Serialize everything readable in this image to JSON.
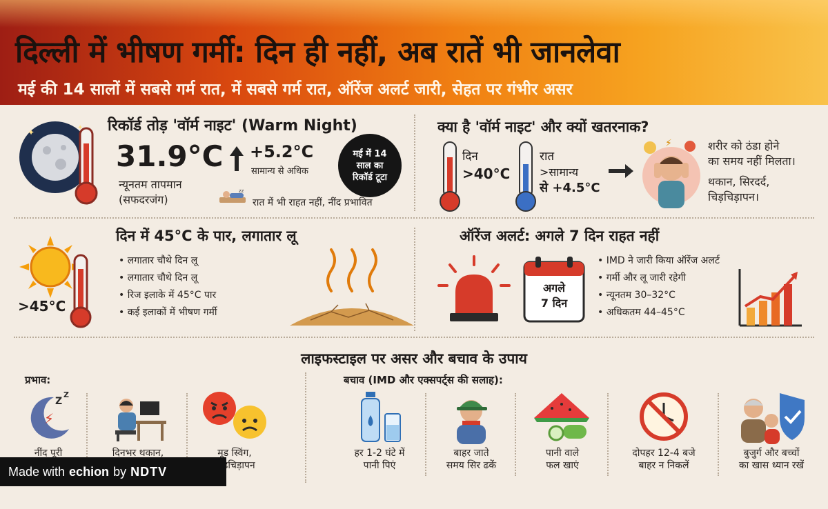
{
  "header": {
    "title": "दिल्ली में भीषण गर्मी: दिन ही नहीं, अब रातें भी जानलेवा",
    "subtitle": "मई की 14 सालों में सबसे गर्म रात, में सबसे गर्म रात, ऑरेंज अलर्ट जारी, सेहत पर गंभीर असर"
  },
  "warm_night": {
    "heading": "रिकॉर्ड तोड़ 'वॉर्म नाइट' (Warm Night)",
    "temp": "31.9°C",
    "temp_label_1": "न्यूनतम तापमान",
    "temp_label_2": "(सफदरजंग)",
    "delta": "+5.2°C",
    "delta_label": "सामान्य से अधिक",
    "record_badge": "मई में 14 साल का रिकॉर्ड टूटा",
    "sleep_note": "रात में भी राहत नहीं, नींद प्रभावित"
  },
  "what_is": {
    "heading": "क्या है 'वॉर्म नाइट' और क्यों खतरनाक?",
    "day_label": "दिन",
    "day_value": ">40°C",
    "night_label": "रात",
    "night_value_1": ">सामान्य",
    "night_value_2": "से +4.5°C",
    "text_1": "शरीर को ठंडा होने",
    "text_2": "का समय नहीं मिलता।",
    "text_3": "थकान, सिरदर्द,",
    "text_4": "चिड़चिड़ापन।"
  },
  "day_heat": {
    "heading": "दिन में 45°C के पार, लगातार लू",
    "temp": ">45°C",
    "bullets": [
      "लगातार चौथे दिन लू",
      "लगातार चौथे दिन लू",
      "रिज इलाके में 45°C पार",
      "कई इलाकों में भीषण गर्मी"
    ]
  },
  "alert": {
    "heading": "ऑरेंज अलर्ट: अगले 7 दिन राहत नहीं",
    "calendar_1": "अगले",
    "calendar_2": "7 दिन",
    "bullets": [
      "IMD ने जारी किया ऑरेंज अलर्ट",
      "गर्मी और लू जारी रहेगी",
      "न्यूनतम 30–32°C",
      "अधिकतम 44–45°C"
    ]
  },
  "lifestyle": {
    "heading": "लाइफस्टाइल पर असर और बचाव के उपाय",
    "impact_label": "प्रभाव:",
    "prevention_label": "बचाव (IMD और एक्सपर्ट्स की सलाह):",
    "impacts": [
      {
        "icon": "moon-sleep-icon",
        "line1": "नींद पूरी",
        "line2": ""
      },
      {
        "icon": "tired-worker-icon",
        "line1": "दिनभर थकान,",
        "line2": ""
      },
      {
        "icon": "angry-sad-face-icon",
        "line1": "मूड स्विंग,",
        "line2": "चिड़चिड़ापन"
      }
    ],
    "tips": [
      {
        "icon": "water-bottle-icon",
        "line1": "हर 1-2 घंटे में",
        "line2": "पानी पिएं"
      },
      {
        "icon": "cap-person-icon",
        "line1": "बाहर जाते",
        "line2": "समय सिर ढकें"
      },
      {
        "icon": "watermelon-icon",
        "line1": "पानी वाले",
        "line2": "फल खाएं"
      },
      {
        "icon": "no-sun-clock-icon",
        "line1": "दोपहर 12-4 बजे",
        "line2": "बाहर न निकलें"
      },
      {
        "icon": "elderly-child-shield-icon",
        "line1": "बुजुर्ग और बच्चों",
        "line2": "का खास ध्यान रखें"
      }
    ]
  },
  "footer_badge": {
    "made_with": "Made with",
    "brand": "echion",
    "by": "by",
    "network": "NDTV"
  },
  "colors": {
    "header_dark": "#9e1e14",
    "header_orange": "#f07f12",
    "panel_bg": "#f3ece3",
    "thermo_red": "#d63b2a",
    "thermo_blue": "#3b6fc4"
  }
}
